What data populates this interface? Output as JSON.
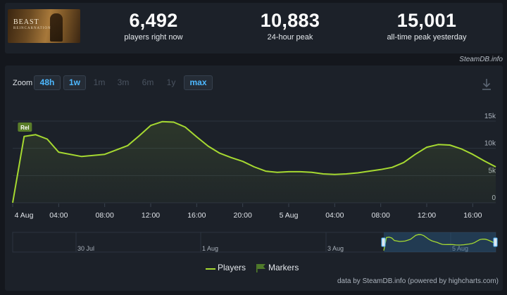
{
  "game": {
    "thumb_title": "BEAST",
    "thumb_subtitle": "REINCARNATION"
  },
  "stats": [
    {
      "value": "6,492",
      "label": "players right now"
    },
    {
      "value": "10,883",
      "label": "24-hour peak"
    },
    {
      "value": "15,001",
      "label": "all-time peak yesterday"
    }
  ],
  "steamdb_link": "SteamDB.info",
  "zoom": {
    "label": "Zoom",
    "buttons": [
      {
        "label": "48h",
        "state": "active"
      },
      {
        "label": "1w",
        "state": "active"
      },
      {
        "label": "1m",
        "state": "disabled"
      },
      {
        "label": "3m",
        "state": "disabled"
      },
      {
        "label": "6m",
        "state": "disabled"
      },
      {
        "label": "1y",
        "state": "disabled"
      },
      {
        "label": "max",
        "state": "active"
      }
    ]
  },
  "legend": {
    "players": "Players",
    "markers": "Markers"
  },
  "credit": "data by SteamDB.info (powered by highcharts.com)",
  "colors": {
    "line": "#a6d931",
    "accent": "#4db8ff",
    "panel": "#1c2129",
    "background": "#14171d"
  },
  "icons": {
    "download": "download-icon",
    "marker": "flag-icon"
  },
  "chart_data": {
    "type": "line",
    "series": [
      {
        "name": "Players",
        "x": [
          "4 Aug 00:00",
          "4 Aug 01:00",
          "4 Aug 02:00",
          "4 Aug 03:00",
          "4 Aug 04:00",
          "4 Aug 06:00",
          "4 Aug 08:00",
          "4 Aug 10:00",
          "4 Aug 11:00",
          "4 Aug 12:00",
          "4 Aug 13:00",
          "4 Aug 14:00",
          "4 Aug 15:00",
          "4 Aug 16:00",
          "4 Aug 17:00",
          "4 Aug 18:00",
          "4 Aug 19:00",
          "4 Aug 20:00",
          "4 Aug 21:00",
          "4 Aug 22:00",
          "4 Aug 23:00",
          "5 Aug 00:00",
          "5 Aug 01:00",
          "5 Aug 02:00",
          "5 Aug 03:00",
          "5 Aug 04:00",
          "5 Aug 05:00",
          "5 Aug 06:00",
          "5 Aug 07:00",
          "5 Aug 08:00",
          "5 Aug 09:00",
          "5 Aug 10:00",
          "5 Aug 11:00",
          "5 Aug 12:00",
          "5 Aug 13:00",
          "5 Aug 14:00",
          "5 Aug 15:00",
          "5 Aug 16:00",
          "5 Aug 17:00",
          "5 Aug 18:00"
        ],
        "values": [
          0,
          12200,
          12500,
          11700,
          9300,
          8500,
          8900,
          10500,
          12300,
          14200,
          14900,
          14800,
          13900,
          12100,
          10400,
          9100,
          8300,
          7600,
          6600,
          5800,
          5600,
          5700,
          5700,
          5600,
          5300,
          5200,
          5300,
          5500,
          5800,
          6100,
          6500,
          7400,
          8900,
          10200,
          10700,
          10600,
          9900,
          8900,
          7700,
          6600
        ]
      }
    ],
    "markers": [
      {
        "x": "4 Aug 01:00",
        "label": "Rel"
      }
    ],
    "x_ticks": [
      "4 Aug",
      "04:00",
      "08:00",
      "12:00",
      "16:00",
      "20:00",
      "5 Aug",
      "04:00",
      "08:00",
      "12:00",
      "16:00"
    ],
    "y_ticks": [
      "0",
      "5k",
      "10k",
      "15k"
    ],
    "ylim": [
      0,
      15000
    ],
    "grid": true,
    "legend": "bottom-center",
    "navigator": {
      "labels": [
        "30 Jul",
        "1 Aug",
        "3 Aug",
        "5 Aug"
      ]
    }
  }
}
